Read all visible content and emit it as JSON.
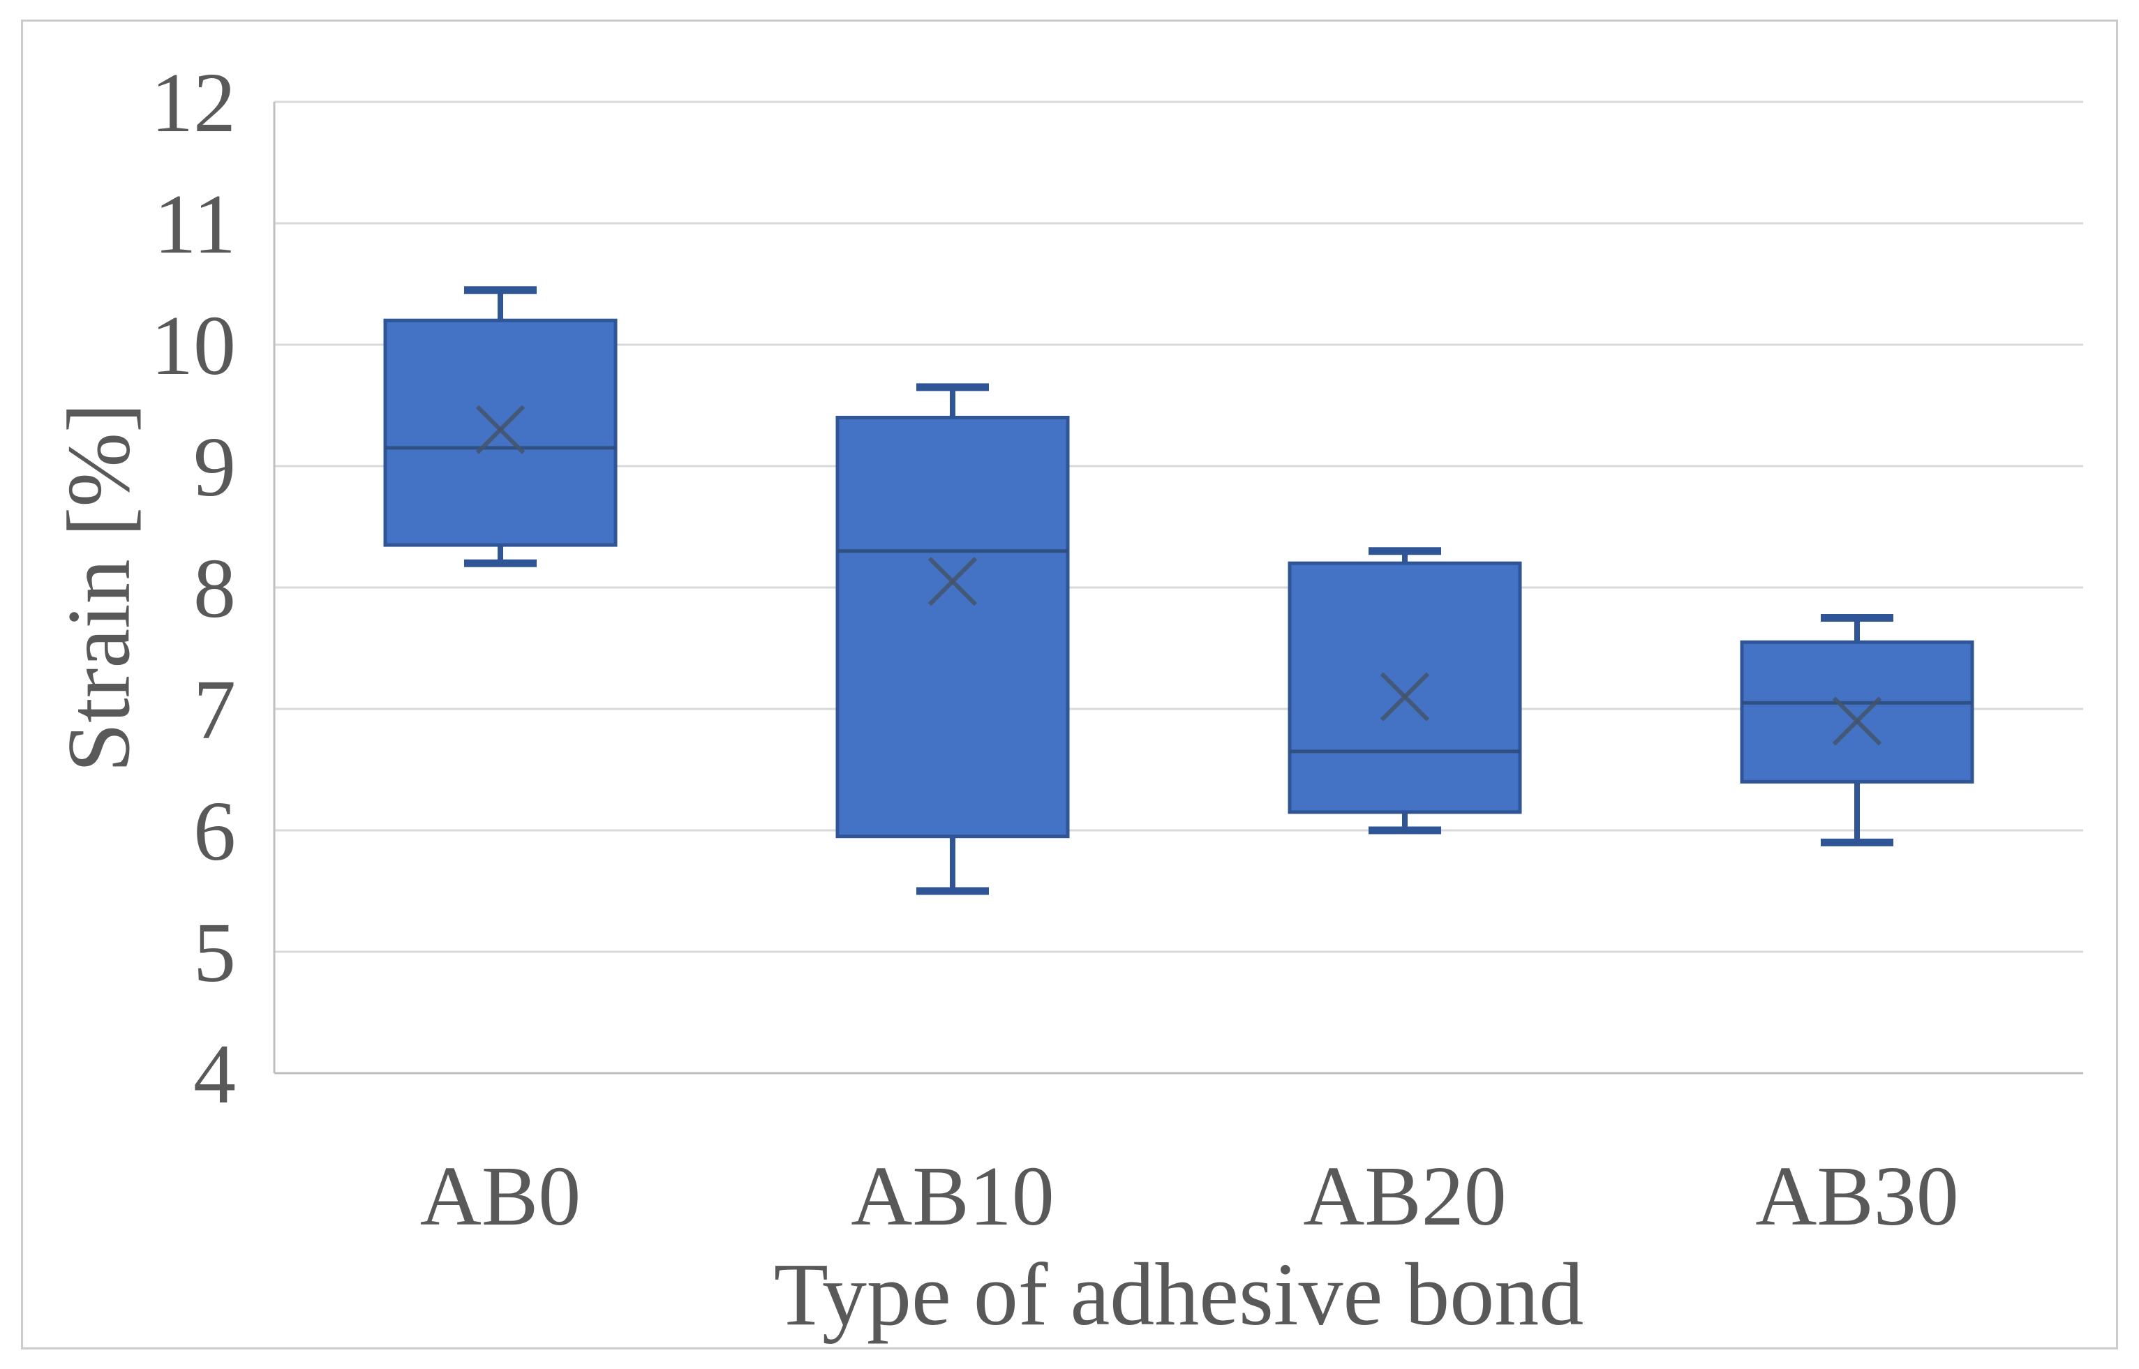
{
  "figure": {
    "background": "#ffffff",
    "border_color": "#cccccc"
  },
  "chart_data": {
    "type": "box",
    "title": "",
    "xlabel": "Type of adhesive bond",
    "ylabel": "Strain [%]",
    "categories": [
      "AB0",
      "AB10",
      "AB20",
      "AB30"
    ],
    "ylim": [
      4,
      12
    ],
    "yticks": [
      12,
      11,
      10,
      9,
      8,
      7,
      6,
      5,
      4
    ],
    "grid": "horizontal",
    "legend": "none",
    "mean_marker": "x",
    "boxes": [
      {
        "category": "AB0",
        "whisker_low": 8.2,
        "q1": 8.35,
        "median": 9.15,
        "mean": 9.3,
        "q3": 10.2,
        "whisker_high": 10.45
      },
      {
        "category": "AB10",
        "whisker_low": 5.5,
        "q1": 5.95,
        "median": 8.3,
        "mean": 8.05,
        "q3": 9.4,
        "whisker_high": 9.65
      },
      {
        "category": "AB20",
        "whisker_low": 6.0,
        "q1": 6.15,
        "median": 6.65,
        "mean": 7.1,
        "q3": 8.2,
        "whisker_high": 8.3
      },
      {
        "category": "AB30",
        "whisker_low": 5.9,
        "q1": 6.4,
        "median": 7.05,
        "mean": 6.9,
        "q3": 7.55,
        "whisker_high": 7.75
      }
    ],
    "colors": {
      "box_fill": "#4472C4",
      "box_border": "#2F5597",
      "median_line": "#2E4D7B",
      "mean_marker": "#44546A",
      "gridline": "#D9D9D9",
      "axis_line": "#BFBFBF",
      "text": "#595959"
    }
  }
}
